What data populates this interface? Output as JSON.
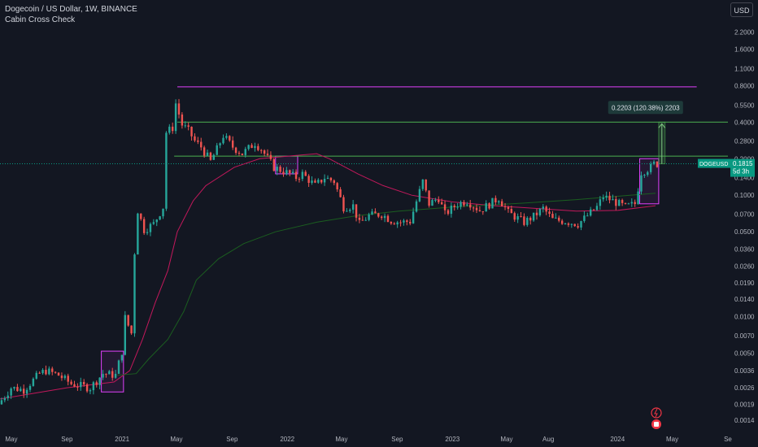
{
  "header": {
    "symbol_line": "Dogecoin / US Dollar, 1W, BINANCE",
    "indicator": "Cabin Cross Check"
  },
  "currency_button": "USD",
  "colors": {
    "background": "#131722",
    "up": "#26a69a",
    "down": "#ef5350",
    "ma_fast": "#c2185b",
    "ma_slow": "#1b5e20",
    "magenta_line": "#e040fb",
    "green_line": "#4caf50",
    "price_badge": "#089981"
  },
  "chart_data": {
    "type": "candlestick",
    "scale": "log",
    "symbol": "DOGEUSD",
    "y_ticks": [
      2.2,
      1.6,
      1.1,
      0.8,
      0.55,
      0.4,
      0.28,
      0.2,
      0.14,
      0.1,
      0.07,
      0.05,
      0.036,
      0.026,
      0.019,
      0.014,
      0.01,
      0.007,
      0.005,
      0.0036,
      0.0026,
      0.0019,
      0.0014
    ],
    "y_tick_labels": [
      "2.2000",
      "1.6000",
      "1.1000",
      "0.8000",
      "0.5500",
      "0.4000",
      "0.2800",
      "0.2000",
      "0.1400",
      "0.1000",
      "0.0700",
      "0.0500",
      "0.0360",
      "0.0260",
      "0.0190",
      "0.0140",
      "0.0100",
      "0.0070",
      "0.0050",
      "0.0036",
      "0.0026",
      "0.0019",
      "0.0014"
    ],
    "ylim": [
      0.00115,
      2.8
    ],
    "x_ticks": [
      {
        "label": "May",
        "date": "2020-05-01"
      },
      {
        "label": "Sep",
        "date": "2020-09-01"
      },
      {
        "label": "2021",
        "date": "2021-01-01"
      },
      {
        "label": "May",
        "date": "2021-05-01"
      },
      {
        "label": "Sep",
        "date": "2021-09-01"
      },
      {
        "label": "2022",
        "date": "2022-01-01"
      },
      {
        "label": "May",
        "date": "2022-05-01"
      },
      {
        "label": "Sep",
        "date": "2022-09-01"
      },
      {
        "label": "2023",
        "date": "2023-01-01"
      },
      {
        "label": "May",
        "date": "2023-05-01"
      },
      {
        "label": "Aug",
        "date": "2023-08-01"
      },
      {
        "label": "2024",
        "date": "2024-01-01"
      },
      {
        "label": "May",
        "date": "2024-05-01"
      },
      {
        "label": "Se",
        "date": "2024-09-01"
      }
    ],
    "xlim": [
      "2020-04-06",
      "2024-09-01"
    ],
    "price_path": [
      [
        "2020-04-06",
        0.0019
      ],
      [
        "2020-05-04",
        0.0026
      ],
      [
        "2020-06-01",
        0.0025
      ],
      [
        "2020-07-06",
        0.0034
      ],
      [
        "2020-07-20",
        0.0036
      ],
      [
        "2020-08-17",
        0.0033
      ],
      [
        "2020-09-14",
        0.0028
      ],
      [
        "2020-10-26",
        0.0026
      ],
      [
        "2020-11-23",
        0.0034
      ],
      [
        "2020-12-21",
        0.0033
      ],
      [
        "2021-01-04",
        0.0052
      ],
      [
        "2021-01-11",
        0.0098
      ],
      [
        "2021-01-25",
        0.0073
      ],
      [
        "2021-02-01",
        0.034
      ],
      [
        "2021-02-08",
        0.075
      ],
      [
        "2021-02-22",
        0.052
      ],
      [
        "2021-03-15",
        0.058
      ],
      [
        "2021-04-05",
        0.08
      ],
      [
        "2021-04-12",
        0.33
      ],
      [
        "2021-04-26",
        0.36
      ],
      [
        "2021-05-03",
        0.57
      ],
      [
        "2021-05-17",
        0.38
      ],
      [
        "2021-05-31",
        0.34
      ],
      [
        "2021-06-14",
        0.28
      ],
      [
        "2021-06-28",
        0.25
      ],
      [
        "2021-07-19",
        0.19
      ],
      [
        "2021-08-02",
        0.24
      ],
      [
        "2021-08-16",
        0.31
      ],
      [
        "2021-09-06",
        0.25
      ],
      [
        "2021-09-27",
        0.22
      ],
      [
        "2021-10-25",
        0.27
      ],
      [
        "2021-11-08",
        0.24
      ],
      [
        "2021-12-06",
        0.17
      ],
      [
        "2022-01-10",
        0.15
      ],
      [
        "2022-01-24",
        0.14
      ],
      [
        "2022-02-07",
        0.15
      ],
      [
        "2022-03-07",
        0.12
      ],
      [
        "2022-03-28",
        0.14
      ],
      [
        "2022-04-18",
        0.13
      ],
      [
        "2022-05-09",
        0.08
      ],
      [
        "2022-05-30",
        0.082
      ],
      [
        "2022-06-13",
        0.058
      ],
      [
        "2022-07-04",
        0.068
      ],
      [
        "2022-08-01",
        0.07
      ],
      [
        "2022-08-22",
        0.062
      ],
      [
        "2022-09-12",
        0.06
      ],
      [
        "2022-10-03",
        0.061
      ],
      [
        "2022-10-31",
        0.13
      ],
      [
        "2022-11-14",
        0.085
      ],
      [
        "2022-12-05",
        0.095
      ],
      [
        "2022-12-19",
        0.07
      ],
      [
        "2023-01-16",
        0.085
      ],
      [
        "2023-02-06",
        0.09
      ],
      [
        "2023-03-06",
        0.075
      ],
      [
        "2023-04-17",
        0.095
      ],
      [
        "2023-05-08",
        0.072
      ],
      [
        "2023-06-12",
        0.06
      ],
      [
        "2023-07-03",
        0.067
      ],
      [
        "2023-07-24",
        0.078
      ],
      [
        "2023-08-14",
        0.063
      ],
      [
        "2023-09-11",
        0.061
      ],
      [
        "2023-10-09",
        0.058
      ],
      [
        "2023-10-30",
        0.068
      ],
      [
        "2023-11-20",
        0.08
      ],
      [
        "2023-12-04",
        0.098
      ],
      [
        "2023-12-25",
        0.09
      ],
      [
        "2024-01-22",
        0.08
      ],
      [
        "2024-02-12",
        0.085
      ],
      [
        "2024-02-26",
        0.155
      ],
      [
        "2024-03-04",
        0.16
      ],
      [
        "2024-03-18",
        0.17
      ],
      [
        "2024-03-25",
        0.1815
      ]
    ],
    "ma_fast": [
      [
        "2020-04-06",
        0.0021
      ],
      [
        "2020-09-01",
        0.0026
      ],
      [
        "2020-12-14",
        0.0029
      ],
      [
        "2021-01-18",
        0.0036
      ],
      [
        "2021-02-15",
        0.0065
      ],
      [
        "2021-03-15",
        0.013
      ],
      [
        "2021-04-12",
        0.024
      ],
      [
        "2021-05-03",
        0.05
      ],
      [
        "2021-06-07",
        0.09
      ],
      [
        "2021-07-05",
        0.12
      ],
      [
        "2021-09-06",
        0.17
      ],
      [
        "2021-11-01",
        0.2
      ],
      [
        "2022-01-03",
        0.21
      ],
      [
        "2022-03-07",
        0.22
      ],
      [
        "2022-04-04",
        0.2
      ],
      [
        "2022-06-06",
        0.15
      ],
      [
        "2022-08-01",
        0.12
      ],
      [
        "2022-10-03",
        0.1
      ],
      [
        "2023-01-02",
        0.088
      ],
      [
        "2023-04-03",
        0.082
      ],
      [
        "2023-07-03",
        0.078
      ],
      [
        "2023-10-02",
        0.074
      ],
      [
        "2024-01-01",
        0.075
      ],
      [
        "2024-03-25",
        0.082
      ]
    ],
    "ma_slow": [
      [
        "2020-12-21",
        0.0033
      ],
      [
        "2021-02-01",
        0.0034
      ],
      [
        "2021-03-01",
        0.0045
      ],
      [
        "2021-04-12",
        0.0065
      ],
      [
        "2021-05-17",
        0.011
      ],
      [
        "2021-06-14",
        0.02
      ],
      [
        "2021-08-02",
        0.03
      ],
      [
        "2021-09-27",
        0.04
      ],
      [
        "2021-12-06",
        0.05
      ],
      [
        "2022-03-07",
        0.06
      ],
      [
        "2022-06-06",
        0.068
      ],
      [
        "2022-09-05",
        0.074
      ],
      [
        "2023-01-02",
        0.08
      ],
      [
        "2023-06-05",
        0.086
      ],
      [
        "2023-10-02",
        0.092
      ],
      [
        "2024-01-01",
        0.098
      ],
      [
        "2024-03-25",
        0.104
      ]
    ],
    "horizontal_levels": [
      {
        "value": 0.78,
        "start": "2021-05-03",
        "end": "2024-06-24",
        "kind": "magenta"
      },
      {
        "value": 0.4,
        "start": "2021-05-03",
        "end": "2024-09-01",
        "kind": "green"
      },
      {
        "value": 0.21,
        "start": "2021-04-26",
        "end": "2024-09-01",
        "kind": "green"
      }
    ],
    "current_price_line": 0.1815,
    "highlight_boxes": [
      {
        "start": "2020-11-16",
        "end": "2021-01-04",
        "top": 0.0052,
        "bottom": 0.0024
      },
      {
        "start": "2021-12-06",
        "end": "2022-01-24",
        "top": 0.21,
        "bottom": 0.15
      },
      {
        "start": "2024-02-19",
        "end": "2024-04-01",
        "top": 0.2,
        "bottom": 0.085
      }
    ],
    "measure": {
      "label": "0.2203 (120.38%) 2203",
      "start": "2024-04-01",
      "end": "2024-04-15",
      "from": 0.1815,
      "to": 0.4
    },
    "price_label": {
      "symbol": "DOGEUSD",
      "price": "0.1815",
      "countdown": "5d 3h"
    }
  }
}
